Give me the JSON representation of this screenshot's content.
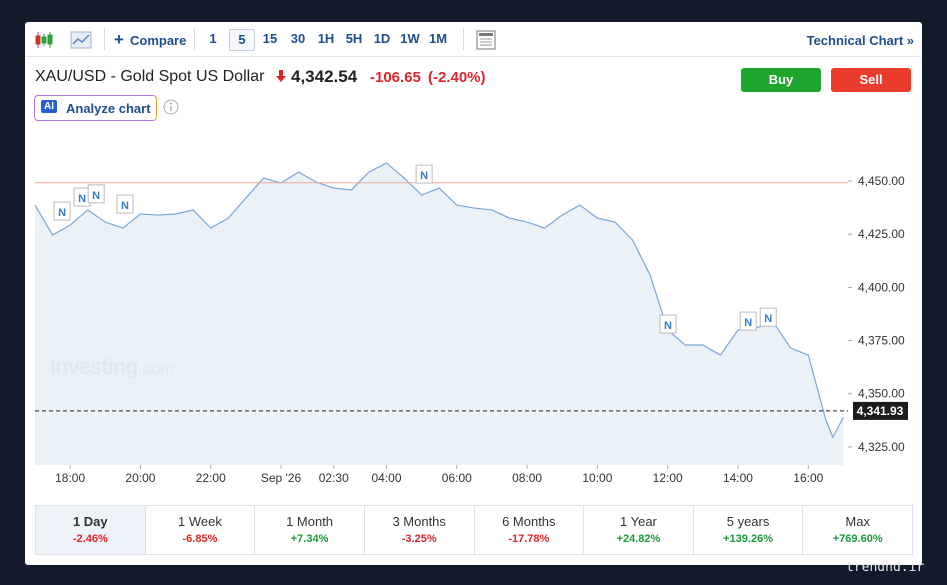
{
  "toolbar": {
    "compare": "Compare",
    "timeframes": [
      "1",
      "5",
      "15",
      "30",
      "1H",
      "5H",
      "1D",
      "1W",
      "1M"
    ],
    "technical_chart": "Technical Chart »"
  },
  "header": {
    "title": "XAU/USD - Gold Spot US Dollar",
    "price": "4,342.54",
    "change": "-106.65",
    "change_pct": "(-2.40%)",
    "buy": "Buy",
    "sell": "Sell",
    "ai_badge": "AI",
    "analyze": "Analyze chart"
  },
  "chart_data": {
    "type": "line",
    "color": "#7aa7d6",
    "fill": "#e6eef6",
    "x": [
      -1,
      -0.5,
      0,
      0.5,
      1,
      1.5,
      2,
      2.5,
      3,
      3.5,
      4,
      4.5,
      5,
      5.5,
      6,
      6.5,
      7,
      7.5,
      8,
      8.5,
      9,
      9.5,
      10,
      10.5,
      11,
      11.5,
      12,
      12.5,
      13,
      13.5,
      14,
      14.5,
      15,
      15.5,
      16,
      16.5,
      17,
      17.5,
      18,
      18.5,
      19,
      19.5,
      20,
      20.5,
      21,
      21.5,
      21.7,
      22
    ],
    "values": [
      4438.7,
      4424.6,
      4429.3,
      4436.4,
      4430.7,
      4427.9,
      4434.5,
      4434.0,
      4434.5,
      4436.4,
      4427.9,
      4432.6,
      4442.0,
      4451.4,
      4449.1,
      4454.2,
      4449.5,
      4446.7,
      4445.8,
      4454.2,
      4458.5,
      4451.4,
      4443.4,
      4446.7,
      4438.7,
      4437.3,
      4436.4,
      4432.6,
      4430.7,
      4427.9,
      4434.0,
      4438.7,
      4432.6,
      4430.7,
      4422.3,
      4405.8,
      4380.0,
      4372.9,
      4372.9,
      4368.2,
      4380.0,
      4380.9,
      4383.7,
      4371.5,
      4368.2,
      4337.7,
      4329.5,
      4339.0
    ],
    "xlim": [
      -1,
      22.13
    ],
    "ylim": [
      4316.5,
      4470.7
    ],
    "xticks": [
      {
        "value": 0,
        "label": "18:00"
      },
      {
        "value": 2,
        "label": "20:00"
      },
      {
        "value": 4,
        "label": "22:00"
      },
      {
        "value": 6,
        "label": "Sep '26"
      },
      {
        "value": 7.5,
        "label": "02:30"
      },
      {
        "value": 9,
        "label": "04:00"
      },
      {
        "value": 11,
        "label": "06:00"
      },
      {
        "value": 13,
        "label": "08:00"
      },
      {
        "value": 15,
        "label": "10:00"
      },
      {
        "value": 17,
        "label": "12:00"
      },
      {
        "value": 19,
        "label": "14:00"
      },
      {
        "value": 21,
        "label": "16:00"
      }
    ],
    "yticks": [
      {
        "value": 4325,
        "label": "4,325.00"
      },
      {
        "value": 4350,
        "label": "4,350.00"
      },
      {
        "value": 4375,
        "label": "4,375.00"
      },
      {
        "value": 4400,
        "label": "4,400.00"
      },
      {
        "value": 4425,
        "label": "4,425.00"
      },
      {
        "value": 4450,
        "label": "4,450.00"
      }
    ],
    "reference_line": 4449.19,
    "reference_color": "#f0a89a",
    "last": {
      "value": 4341.93,
      "label": "4,341.93"
    },
    "news": [
      {
        "x": -0.23,
        "y": 4435.4,
        "text": "N"
      },
      {
        "x": 0.34,
        "y": 4442,
        "text": "N"
      },
      {
        "x": 0.74,
        "y": 4443.5,
        "text": "N"
      },
      {
        "x": 1.56,
        "y": 4438.7,
        "text": "N"
      },
      {
        "x": 10.07,
        "y": 4452.8,
        "text": "N"
      },
      {
        "x": 17.01,
        "y": 4382.3,
        "text": "N"
      },
      {
        "x": 19.29,
        "y": 4383.7,
        "text": "N"
      },
      {
        "x": 19.86,
        "y": 4385.5,
        "text": "N"
      }
    ],
    "watermark": {
      "brand": "Investing",
      "suffix": ".com"
    }
  },
  "periods": [
    {
      "label": "1 Day",
      "change": "-2.46%"
    },
    {
      "label": "1 Week",
      "change": "-6.85%"
    },
    {
      "label": "1 Month",
      "change": "+7.34%"
    },
    {
      "label": "3 Months",
      "change": "-3.25%"
    },
    {
      "label": "6 Months",
      "change": "-17.78%"
    },
    {
      "label": "1 Year",
      "change": "+24.82%"
    },
    {
      "label": "5 years",
      "change": "+139.26%"
    },
    {
      "label": "Max",
      "change": "+769.60%"
    }
  ],
  "site_watermark": "trendhd.ir"
}
